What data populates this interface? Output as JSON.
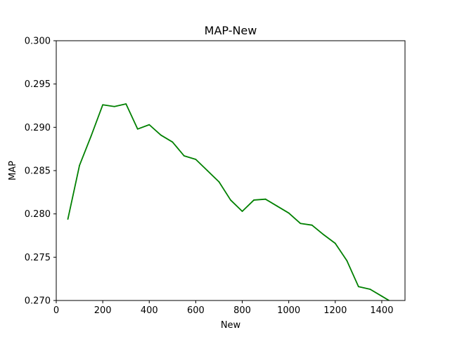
{
  "chart_data": {
    "type": "line",
    "title": "MAP-New",
    "xlabel": "New",
    "ylabel": "MAP",
    "xlim": [
      0,
      1500
    ],
    "ylim": [
      0.27,
      0.3
    ],
    "x_ticks": [
      0,
      200,
      400,
      600,
      800,
      1000,
      1200,
      1400
    ],
    "x_tick_labels": [
      "0",
      "200",
      "400",
      "600",
      "800",
      "1000",
      "1200",
      "1400"
    ],
    "y_ticks": [
      0.27,
      0.275,
      0.28,
      0.285,
      0.29,
      0.295,
      0.3
    ],
    "y_tick_labels": [
      "0.270",
      "0.275",
      "0.280",
      "0.285",
      "0.290",
      "0.295",
      "0.300"
    ],
    "grid": false,
    "series": [
      {
        "color": "#008000",
        "x": [
          50,
          100,
          150,
          200,
          250,
          300,
          350,
          400,
          450,
          500,
          550,
          600,
          650,
          700,
          750,
          800,
          850,
          900,
          950,
          1000,
          1050,
          1100,
          1150,
          1200,
          1250,
          1300,
          1350,
          1400,
          1450
        ],
        "y": [
          0.2794,
          0.2856,
          0.289,
          0.2926,
          0.2924,
          0.2927,
          0.2898,
          0.2903,
          0.2891,
          0.2883,
          0.2867,
          0.2863,
          0.285,
          0.2837,
          0.2816,
          0.2803,
          0.2816,
          0.2817,
          0.2809,
          0.2801,
          0.2789,
          0.2787,
          0.2776,
          0.2766,
          0.2746,
          0.2716,
          0.2713,
          0.2705,
          0.2697
        ]
      }
    ]
  }
}
